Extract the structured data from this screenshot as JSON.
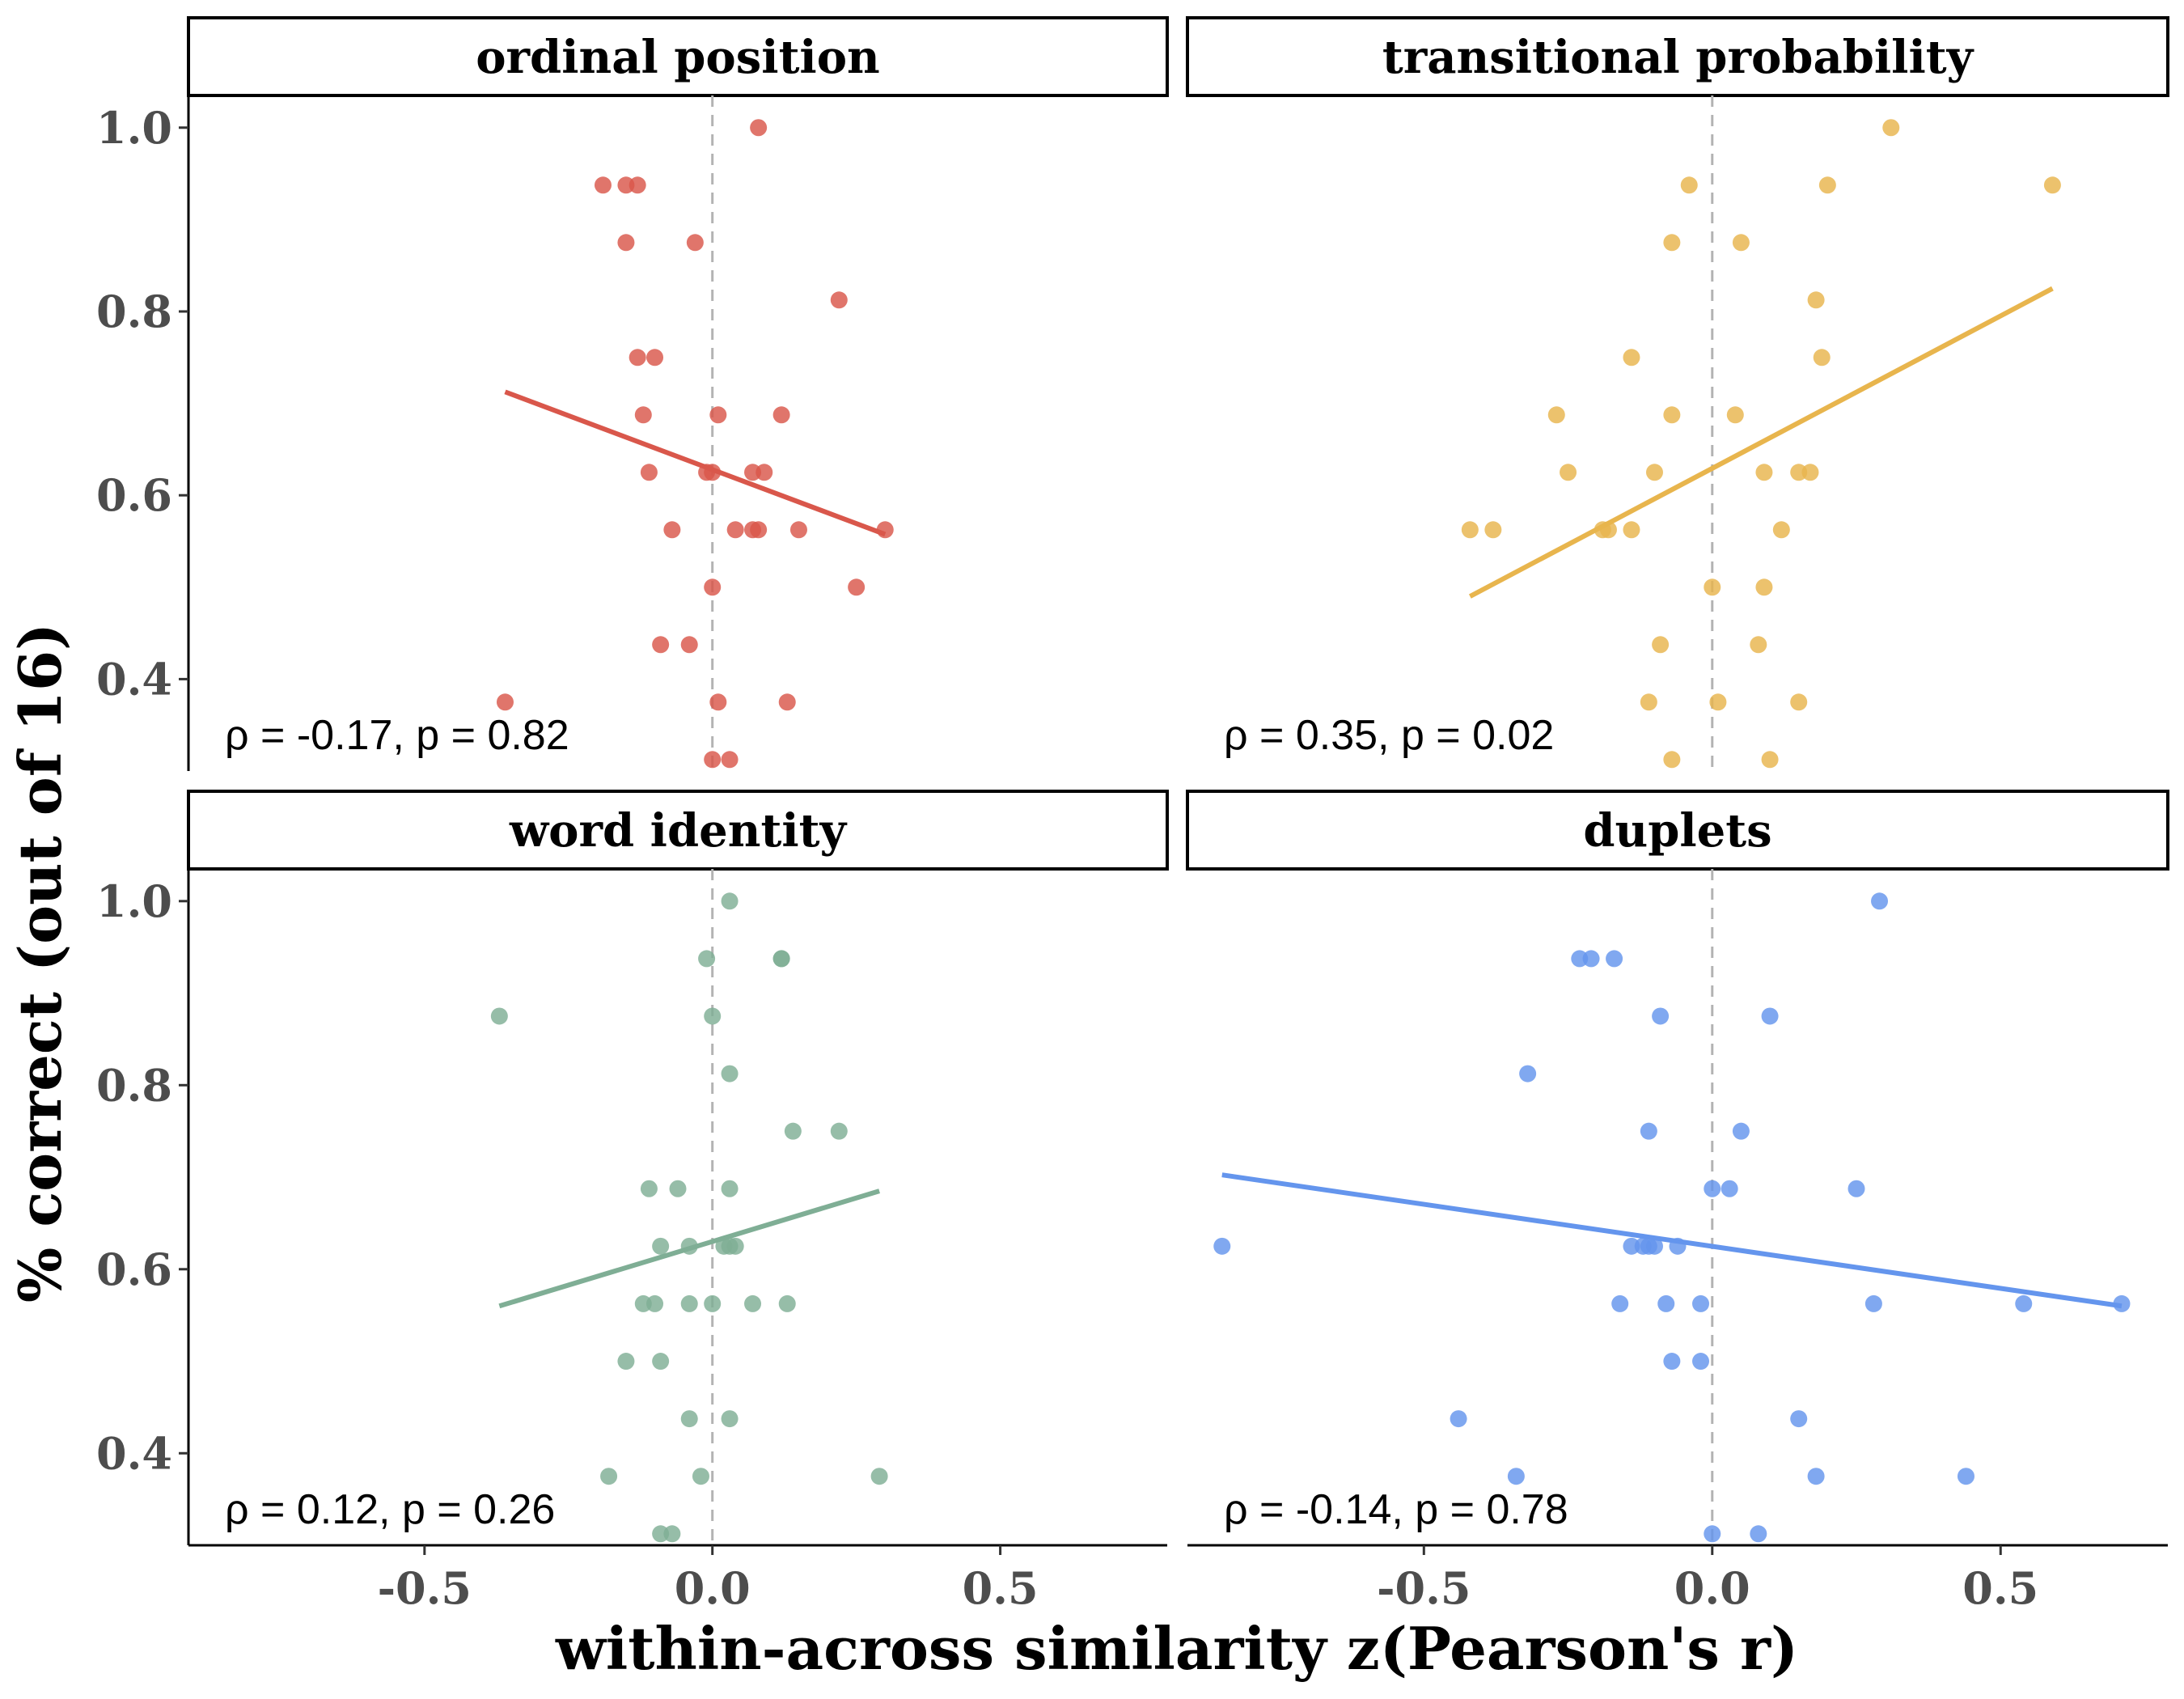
{
  "chart_data": {
    "type": "scatter",
    "xlabel": "within-across similarity z(Pearson's r)",
    "ylabel": "% correct (out of 16)",
    "xlim": [
      -0.91,
      0.79
    ],
    "ylim": [
      0.3,
      1.035
    ],
    "xticks": [
      -0.5,
      0.0,
      0.5
    ],
    "xtick_labels": [
      "-0.5",
      "0.0",
      "0.5"
    ],
    "yticks": [
      0.4,
      0.6,
      0.8,
      1.0
    ],
    "ytick_labels": [
      "0.4",
      "0.6",
      "0.8",
      "1.0"
    ],
    "grid": false,
    "reference_line": {
      "x": 0.0,
      "style": "dashed"
    },
    "panels": [
      {
        "title": "ordinal position",
        "color": "#d9574b",
        "annotation": "ρ = -0.17, p = 0.82",
        "fit": {
          "x": [
            -0.36,
            0.3
          ],
          "y": [
            0.7125,
            0.5575
          ]
        },
        "points": [
          [
            0.08,
            1.0
          ],
          [
            -0.19,
            0.9375
          ],
          [
            -0.15,
            0.9375
          ],
          [
            -0.13,
            0.9375
          ],
          [
            -0.15,
            0.875
          ],
          [
            -0.03,
            0.875
          ],
          [
            0.22,
            0.8125
          ],
          [
            -0.13,
            0.75
          ],
          [
            -0.1,
            0.75
          ],
          [
            -0.12,
            0.6875
          ],
          [
            0.01,
            0.6875
          ],
          [
            0.12,
            0.6875
          ],
          [
            -0.11,
            0.625
          ],
          [
            -0.01,
            0.625
          ],
          [
            0.0,
            0.625
          ],
          [
            0.07,
            0.625
          ],
          [
            0.09,
            0.625
          ],
          [
            -0.07,
            0.5625
          ],
          [
            0.04,
            0.5625
          ],
          [
            0.07,
            0.5625
          ],
          [
            0.08,
            0.5625
          ],
          [
            0.15,
            0.5625
          ],
          [
            0.3,
            0.5625
          ],
          [
            0.0,
            0.5
          ],
          [
            0.25,
            0.5
          ],
          [
            -0.09,
            0.4375
          ],
          [
            -0.04,
            0.4375
          ],
          [
            -0.36,
            0.375
          ],
          [
            0.01,
            0.375
          ],
          [
            0.13,
            0.375
          ],
          [
            0.0,
            0.3125
          ],
          [
            0.03,
            0.3125
          ]
        ]
      },
      {
        "title": "transitional probability",
        "color": "#e8b54d",
        "annotation": "ρ = 0.35, p = 0.02",
        "fit": {
          "x": [
            -0.42,
            0.59
          ],
          "y": [
            0.49,
            0.825
          ]
        },
        "points": [
          [
            0.31,
            1.0
          ],
          [
            -0.04,
            0.9375
          ],
          [
            0.2,
            0.9375
          ],
          [
            0.59,
            0.9375
          ],
          [
            -0.07,
            0.875
          ],
          [
            0.05,
            0.875
          ],
          [
            0.18,
            0.8125
          ],
          [
            -0.14,
            0.75
          ],
          [
            0.19,
            0.75
          ],
          [
            -0.27,
            0.6875
          ],
          [
            -0.07,
            0.6875
          ],
          [
            0.04,
            0.6875
          ],
          [
            -0.25,
            0.625
          ],
          [
            -0.1,
            0.625
          ],
          [
            0.09,
            0.625
          ],
          [
            0.15,
            0.625
          ],
          [
            0.17,
            0.625
          ],
          [
            -0.42,
            0.5625
          ],
          [
            -0.38,
            0.5625
          ],
          [
            -0.19,
            0.5625
          ],
          [
            -0.18,
            0.5625
          ],
          [
            -0.14,
            0.5625
          ],
          [
            0.12,
            0.5625
          ],
          [
            0.0,
            0.5
          ],
          [
            0.09,
            0.5
          ],
          [
            -0.09,
            0.4375
          ],
          [
            0.08,
            0.4375
          ],
          [
            -0.11,
            0.375
          ],
          [
            0.01,
            0.375
          ],
          [
            0.15,
            0.375
          ],
          [
            -0.07,
            0.3125
          ],
          [
            0.1,
            0.3125
          ]
        ]
      },
      {
        "title": "word identity",
        "color": "#7fae95",
        "annotation": "ρ = 0.12, p = 0.26",
        "fit": {
          "x": [
            -0.37,
            0.29
          ],
          "y": [
            0.56,
            0.685
          ]
        },
        "points": [
          [
            0.03,
            1.0
          ],
          [
            -0.01,
            0.9375
          ],
          [
            0.12,
            0.9375
          ],
          [
            0.12,
            0.9375
          ],
          [
            -0.37,
            0.875
          ],
          [
            0.0,
            0.875
          ],
          [
            0.03,
            0.8125
          ],
          [
            0.14,
            0.75
          ],
          [
            0.22,
            0.75
          ],
          [
            -0.11,
            0.6875
          ],
          [
            -0.06,
            0.6875
          ],
          [
            0.03,
            0.6875
          ],
          [
            -0.09,
            0.625
          ],
          [
            -0.04,
            0.625
          ],
          [
            0.02,
            0.625
          ],
          [
            0.03,
            0.625
          ],
          [
            0.04,
            0.625
          ],
          [
            -0.12,
            0.5625
          ],
          [
            -0.1,
            0.5625
          ],
          [
            -0.04,
            0.5625
          ],
          [
            0.0,
            0.5625
          ],
          [
            0.07,
            0.5625
          ],
          [
            0.13,
            0.5625
          ],
          [
            -0.15,
            0.5
          ],
          [
            -0.09,
            0.5
          ],
          [
            -0.04,
            0.4375
          ],
          [
            0.03,
            0.4375
          ],
          [
            -0.18,
            0.375
          ],
          [
            -0.02,
            0.375
          ],
          [
            0.29,
            0.375
          ],
          [
            -0.09,
            0.3125
          ],
          [
            -0.07,
            0.3125
          ]
        ]
      },
      {
        "title": "duplets",
        "color": "#6495ed",
        "annotation": "ρ = -0.14, p = 0.78",
        "fit": {
          "x": [
            -0.85,
            0.71
          ],
          "y": [
            0.7025,
            0.56
          ]
        },
        "points": [
          [
            0.29,
            1.0
          ],
          [
            -0.23,
            0.9375
          ],
          [
            -0.21,
            0.9375
          ],
          [
            -0.17,
            0.9375
          ],
          [
            -0.09,
            0.875
          ],
          [
            0.1,
            0.875
          ],
          [
            -0.32,
            0.8125
          ],
          [
            -0.11,
            0.75
          ],
          [
            0.05,
            0.75
          ],
          [
            0.0,
            0.6875
          ],
          [
            0.03,
            0.6875
          ],
          [
            0.25,
            0.6875
          ],
          [
            -0.85,
            0.625
          ],
          [
            -0.14,
            0.625
          ],
          [
            -0.12,
            0.625
          ],
          [
            -0.11,
            0.625
          ],
          [
            -0.1,
            0.625
          ],
          [
            -0.06,
            0.625
          ],
          [
            -0.16,
            0.5625
          ],
          [
            -0.08,
            0.5625
          ],
          [
            -0.02,
            0.5625
          ],
          [
            0.28,
            0.5625
          ],
          [
            0.54,
            0.5625
          ],
          [
            0.71,
            0.5625
          ],
          [
            -0.07,
            0.5
          ],
          [
            -0.02,
            0.5
          ],
          [
            -0.44,
            0.4375
          ],
          [
            0.15,
            0.4375
          ],
          [
            -0.34,
            0.375
          ],
          [
            0.18,
            0.375
          ],
          [
            0.44,
            0.375
          ],
          [
            0.0,
            0.3125
          ],
          [
            0.08,
            0.3125
          ]
        ]
      }
    ]
  }
}
